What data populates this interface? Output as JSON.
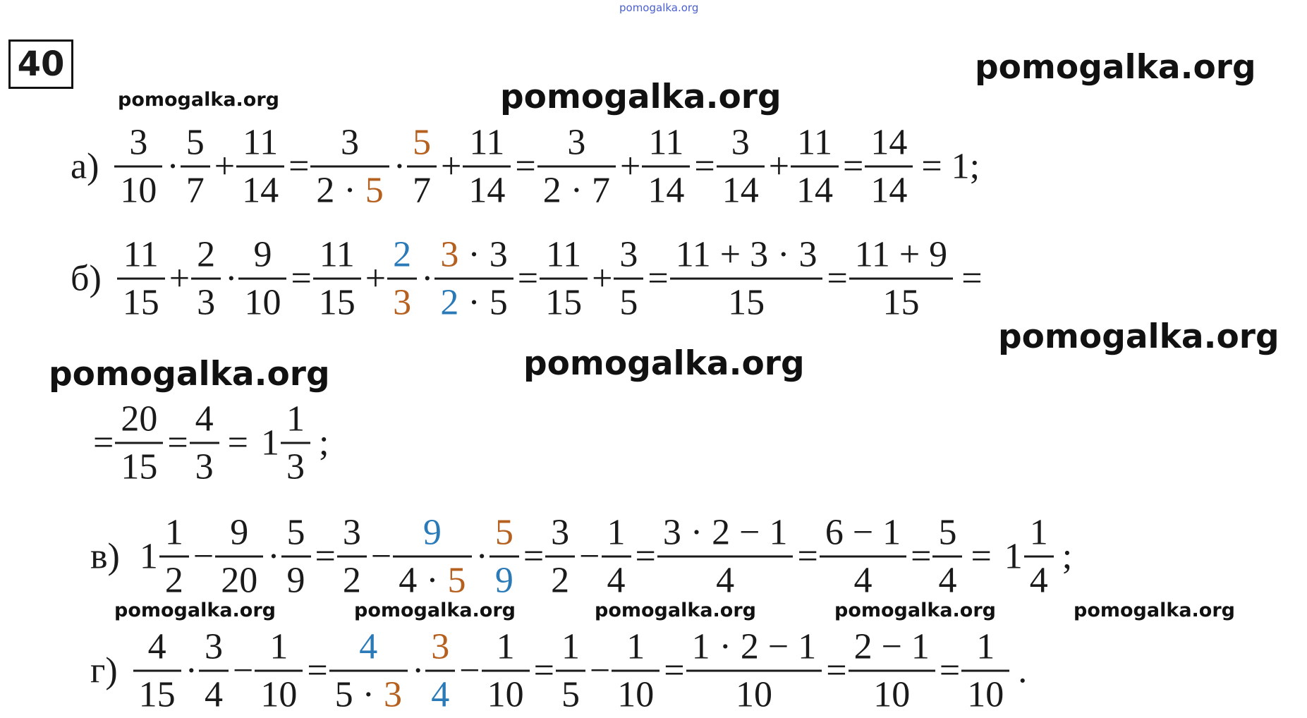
{
  "problem_number": "40",
  "watermarks": [
    "pomogalka.org",
    "pomogalka.org",
    "pomogalka.org",
    "pomogalka.org",
    "pomogalka.org",
    "pomogalka.org",
    "pomogalka.org",
    "pomogalka.org",
    "pomogalka.org",
    "pomogalka.org",
    "pomogalka.org",
    "pomogalka.org"
  ],
  "lines": [
    {
      "label": "а)",
      "items": [
        {
          "num": [
            "3"
          ],
          "den": [
            "10"
          ]
        },
        "·",
        {
          "num": [
            "5"
          ],
          "den": [
            "7"
          ]
        },
        "+",
        {
          "num": [
            "11"
          ],
          "den": [
            "14"
          ]
        },
        "=",
        {
          "num": [
            "3"
          ],
          "den": [
            "2 · ",
            {
              "text": "5",
              "color": "#b5601e"
            }
          ]
        },
        "·",
        {
          "num": [
            {
              "text": "5",
              "color": "#b5601e"
            }
          ],
          "den": [
            "7"
          ]
        },
        "+",
        {
          "num": [
            "11"
          ],
          "den": [
            "14"
          ]
        },
        "=",
        {
          "num": [
            "3"
          ],
          "den": [
            "2 · 7"
          ]
        },
        "+",
        {
          "num": [
            "11"
          ],
          "den": [
            "14"
          ]
        },
        "=",
        {
          "num": [
            "3"
          ],
          "den": [
            "14"
          ]
        },
        "+",
        {
          "num": [
            "11"
          ],
          "den": [
            "14"
          ]
        },
        "=",
        {
          "num": [
            "14"
          ],
          "den": [
            "14"
          ]
        },
        "= 1;"
      ]
    },
    {
      "label": "б)",
      "items": [
        {
          "num": [
            "11"
          ],
          "den": [
            "15"
          ]
        },
        "+",
        {
          "num": [
            "2"
          ],
          "den": [
            "3"
          ]
        },
        "·",
        {
          "num": [
            "9"
          ],
          "den": [
            "10"
          ]
        },
        "=",
        {
          "num": [
            "11"
          ],
          "den": [
            "15"
          ]
        },
        "+",
        {
          "num": [
            {
              "text": "2",
              "color": "#2a7ab8"
            }
          ],
          "den": [
            {
              "text": "3",
              "color": "#b5601e"
            }
          ]
        },
        "·",
        {
          "num": [
            {
              "text": "3",
              "color": "#b5601e"
            },
            " · 3"
          ],
          "den": [
            {
              "text": "2",
              "color": "#2a7ab8"
            },
            " · 5"
          ]
        },
        "=",
        {
          "num": [
            "11"
          ],
          "den": [
            "15"
          ]
        },
        "+",
        {
          "num": [
            "3"
          ],
          "den": [
            "5"
          ]
        },
        "=",
        {
          "num": [
            "11 + 3 · 3"
          ],
          "den": [
            "15"
          ]
        },
        "=",
        {
          "num": [
            "11 + 9"
          ],
          "den": [
            "15"
          ]
        },
        "="
      ]
    },
    {
      "items": [
        "=",
        {
          "num": [
            "20"
          ],
          "den": [
            "15"
          ]
        },
        "=",
        {
          "num": [
            "4"
          ],
          "den": [
            "3"
          ]
        },
        "=",
        "1",
        {
          "num": [
            "1"
          ],
          "den": [
            "3"
          ]
        },
        ";"
      ]
    },
    {
      "label": "в)",
      "items": [
        "1",
        {
          "num": [
            "1"
          ],
          "den": [
            "2"
          ]
        },
        "−",
        {
          "num": [
            "9"
          ],
          "den": [
            "20"
          ]
        },
        "·",
        {
          "num": [
            "5"
          ],
          "den": [
            "9"
          ]
        },
        "=",
        {
          "num": [
            "3"
          ],
          "den": [
            "2"
          ]
        },
        "−",
        {
          "num": [
            {
              "text": "9",
              "color": "#2a7ab8"
            }
          ],
          "den": [
            "4 · ",
            {
              "text": "5",
              "color": "#b5601e"
            }
          ]
        },
        "·",
        {
          "num": [
            {
              "text": "5",
              "color": "#b5601e"
            }
          ],
          "den": [
            {
              "text": "9",
              "color": "#2a7ab8"
            }
          ]
        },
        "=",
        {
          "num": [
            "3"
          ],
          "den": [
            "2"
          ]
        },
        "−",
        {
          "num": [
            "1"
          ],
          "den": [
            "4"
          ]
        },
        "=",
        {
          "num": [
            "3 · 2 − 1"
          ],
          "den": [
            "4"
          ]
        },
        "=",
        {
          "num": [
            "6 − 1"
          ],
          "den": [
            "4"
          ]
        },
        "=",
        {
          "num": [
            "5"
          ],
          "den": [
            "4"
          ]
        },
        "=",
        "1",
        {
          "num": [
            "1"
          ],
          "den": [
            "4"
          ]
        },
        ";"
      ]
    },
    {
      "label": "г)",
      "items": [
        {
          "num": [
            "4"
          ],
          "den": [
            "15"
          ]
        },
        "·",
        {
          "num": [
            "3"
          ],
          "den": [
            "4"
          ]
        },
        "−",
        {
          "num": [
            "1"
          ],
          "den": [
            "10"
          ]
        },
        "=",
        {
          "num": [
            {
              "text": "4",
              "color": "#2a7ab8"
            }
          ],
          "den": [
            "5 · ",
            {
              "text": "3",
              "color": "#b5601e"
            }
          ]
        },
        "·",
        {
          "num": [
            {
              "text": "3",
              "color": "#b5601e"
            }
          ],
          "den": [
            {
              "text": "4",
              "color": "#2a7ab8"
            }
          ]
        },
        "−",
        {
          "num": [
            "1"
          ],
          "den": [
            "10"
          ]
        },
        "=",
        {
          "num": [
            "1"
          ],
          "den": [
            "5"
          ]
        },
        "−",
        {
          "num": [
            "1"
          ],
          "den": [
            "10"
          ]
        },
        "=",
        {
          "num": [
            "1 · 2 − 1"
          ],
          "den": [
            "10"
          ]
        },
        "=",
        {
          "num": [
            "2 − 1"
          ],
          "den": [
            "10"
          ]
        },
        "=",
        {
          "num": [
            "1"
          ],
          "den": [
            "10"
          ]
        },
        "."
      ]
    }
  ]
}
